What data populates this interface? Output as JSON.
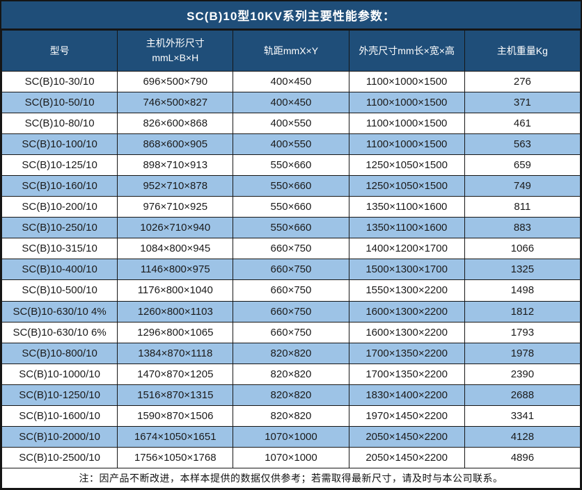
{
  "title": "SC(B)10型10KV系列主要性能参数：",
  "table": {
    "columns": [
      "型号",
      "主机外形尺寸\nmmL×B×H",
      "轨距mmX×Y",
      "外壳尺寸mm长×宽×高",
      "主机重量Kg"
    ],
    "rows": [
      [
        "SC(B)10-30/10",
        "696×500×790",
        "400×450",
        "1100×1000×1500",
        "276"
      ],
      [
        "SC(B)10-50/10",
        "746×500×827",
        "400×450",
        "1100×1000×1500",
        "371"
      ],
      [
        "SC(B)10-80/10",
        "826×600×868",
        "400×550",
        "1100×1000×1500",
        "461"
      ],
      [
        "SC(B)10-100/10",
        "868×600×905",
        "400×550",
        "1100×1000×1500",
        "563"
      ],
      [
        "SC(B)10-125/10",
        "898×710×913",
        "550×660",
        "1250×1050×1500",
        "659"
      ],
      [
        "SC(B)10-160/10",
        "952×710×878",
        "550×660",
        "1250×1050×1500",
        "749"
      ],
      [
        "SC(B)10-200/10",
        "976×710×925",
        "550×660",
        "1350×1100×1600",
        "811"
      ],
      [
        "SC(B)10-250/10",
        "1026×710×940",
        "550×660",
        "1350×1100×1600",
        "883"
      ],
      [
        "SC(B)10-315/10",
        "1084×800×945",
        "660×750",
        "1400×1200×1700",
        "1066"
      ],
      [
        "SC(B)10-400/10",
        "1146×800×975",
        "660×750",
        "1500×1300×1700",
        "1325"
      ],
      [
        "SC(B)10-500/10",
        "1176×800×1040",
        "660×750",
        "1550×1300×2200",
        "1498"
      ],
      [
        "SC(B)10-630/10 4%",
        "1260×800×1103",
        "660×750",
        "1600×1300×2200",
        "1812"
      ],
      [
        "SC(B)10-630/10 6%",
        "1296×800×1065",
        "660×750",
        "1600×1300×2200",
        "1793"
      ],
      [
        "SC(B)10-800/10",
        "1384×870×1118",
        "820×820",
        "1700×1350×2200",
        "1978"
      ],
      [
        "SC(B)10-1000/10",
        "1470×870×1205",
        "820×820",
        "1700×1350×2200",
        "2390"
      ],
      [
        "SC(B)10-1250/10",
        "1516×870×1315",
        "820×820",
        "1830×1400×2200",
        "2688"
      ],
      [
        "SC(B)10-1600/10",
        "1590×870×1506",
        "820×820",
        "1970×1450×2200",
        "3341"
      ],
      [
        "SC(B)10-2000/10",
        "1674×1050×1651",
        "1070×1000",
        "2050×1450×2200",
        "4128"
      ],
      [
        "SC(B)10-2500/10",
        "1756×1050×1768",
        "1070×1000",
        "2050×1450×2200",
        "4896"
      ]
    ]
  },
  "note": "注：因产品不断改进，本样本提供的数据仅供参考；若需取得最新尺寸，请及时与本公司联系。",
  "colors": {
    "header_bg": "#1F4E79",
    "stripe_bg": "#9DC3E6",
    "border": "#151515",
    "text": "#1a1a1a",
    "header_text": "#ffffff"
  }
}
